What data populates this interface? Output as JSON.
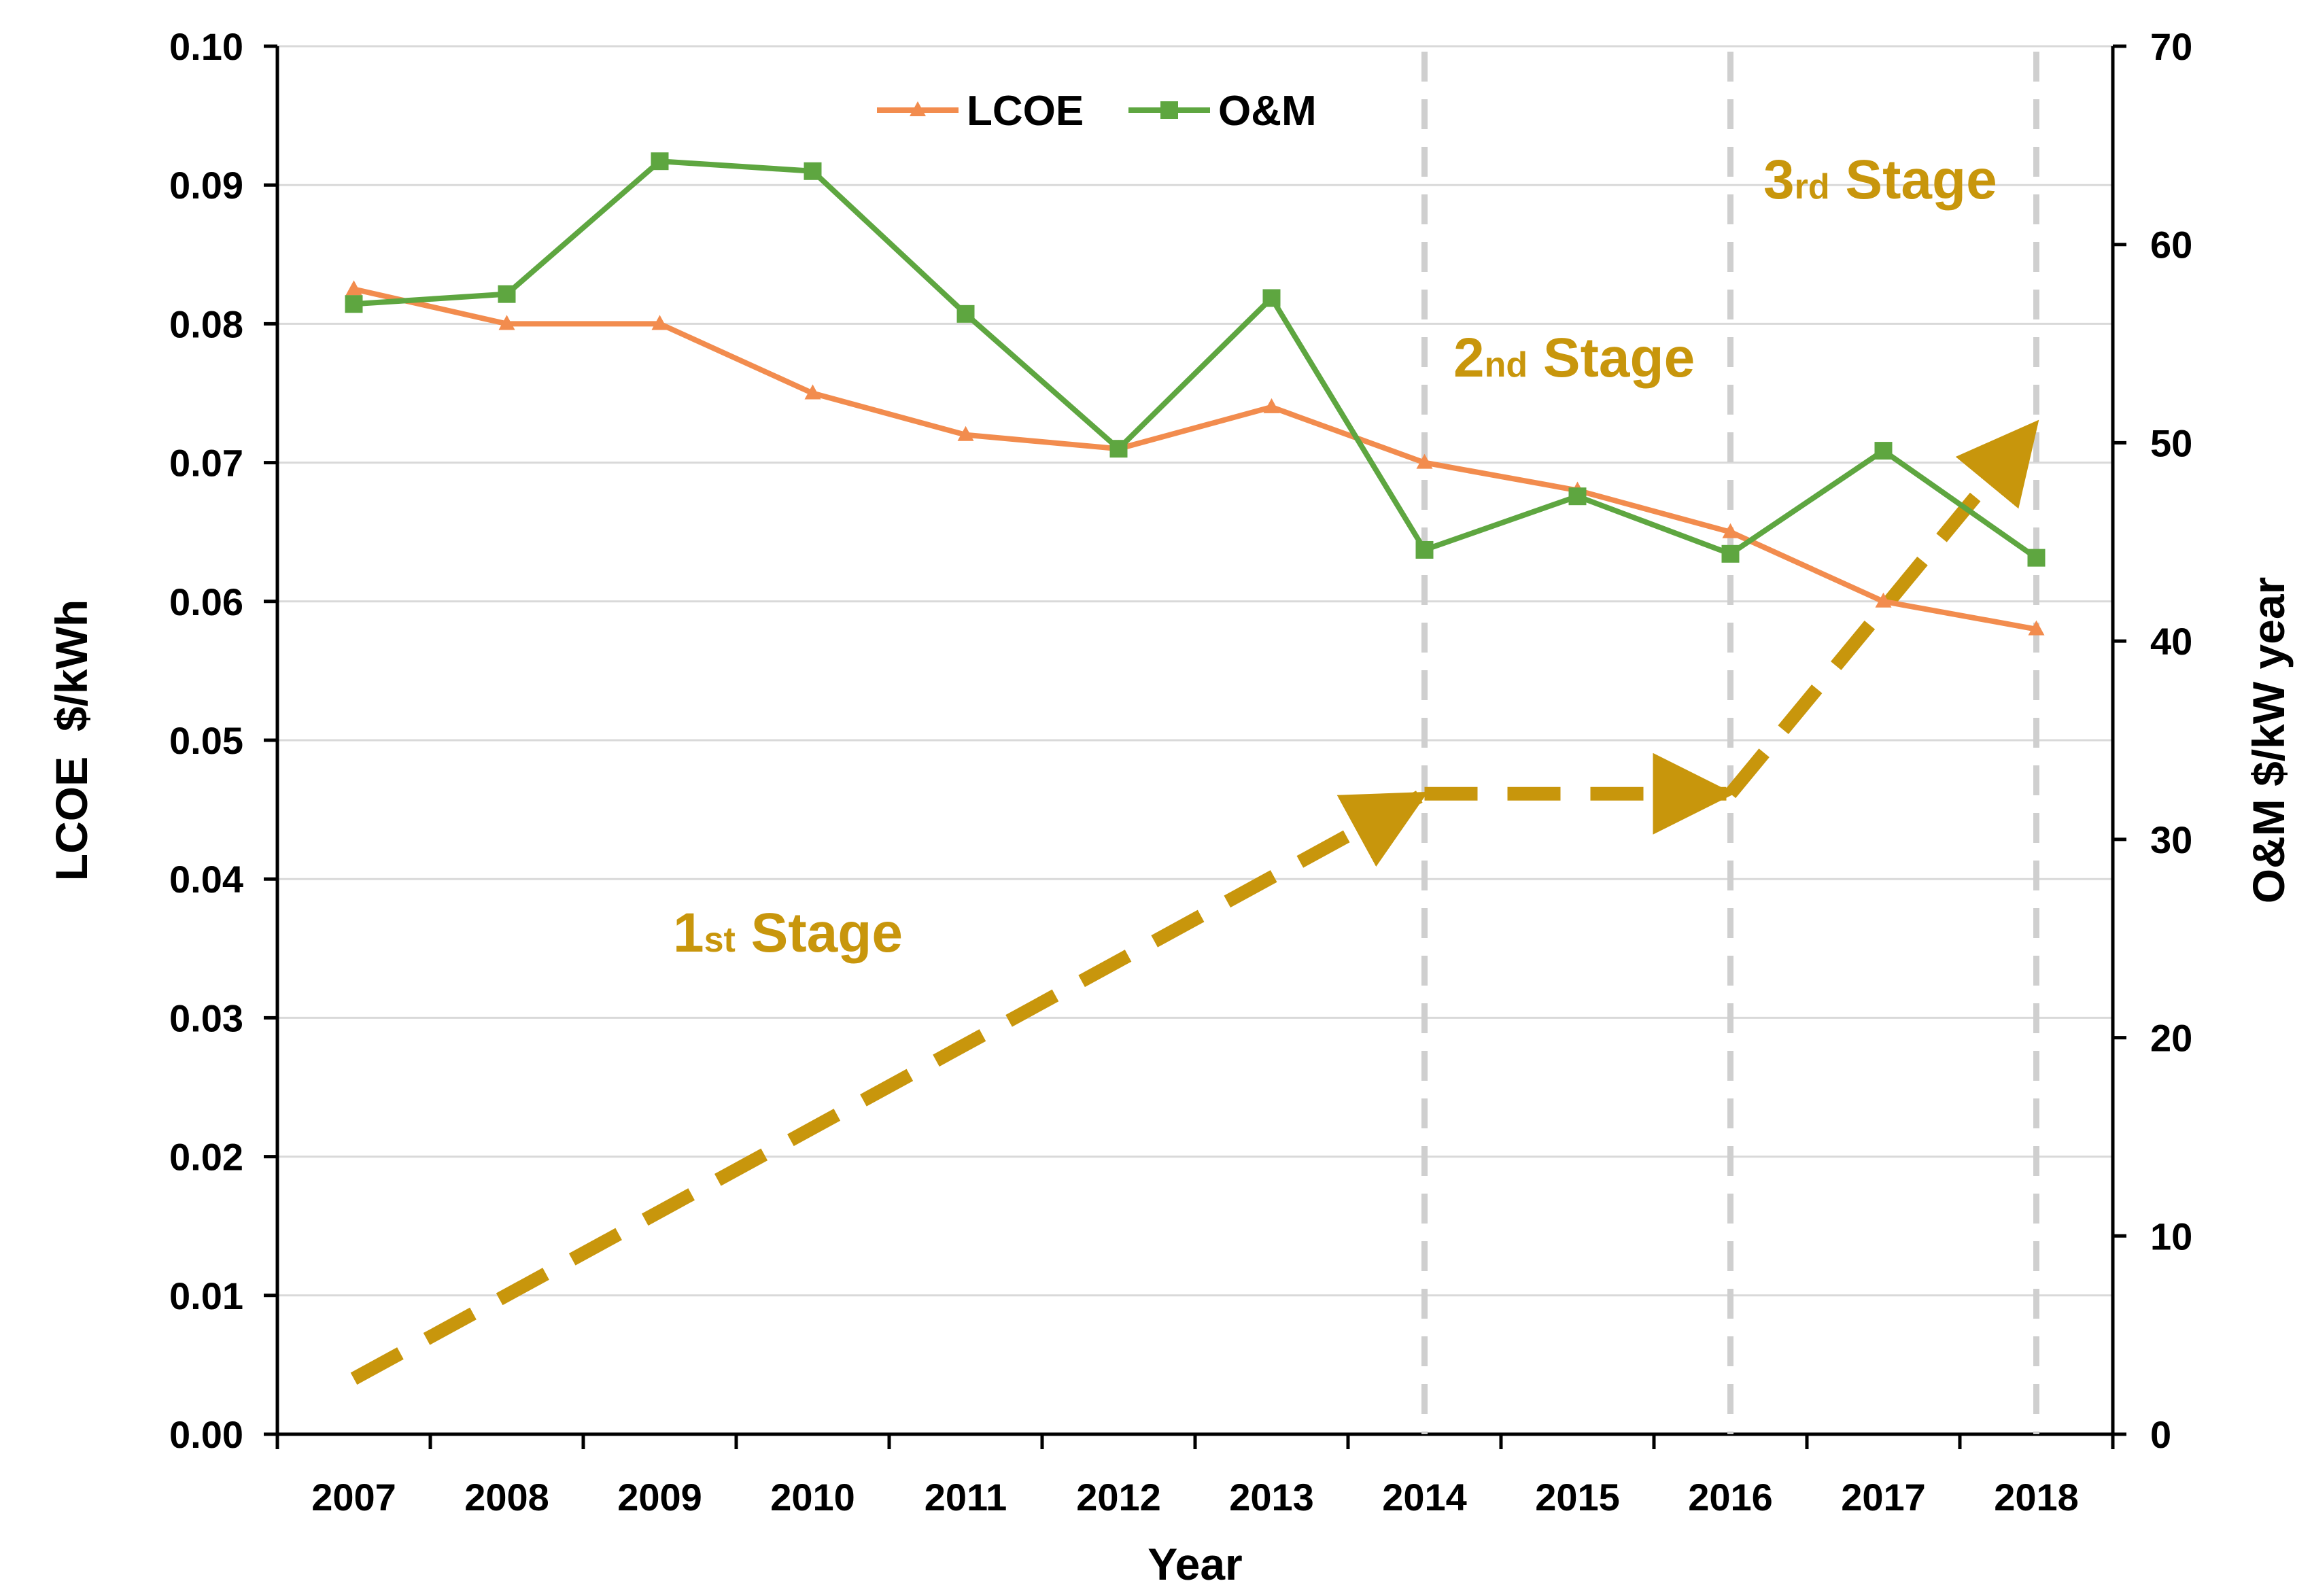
{
  "chart_data": {
    "type": "line",
    "title": "",
    "xlabel": "Year",
    "ylabel": "LCOE  $/kWh",
    "ylabel_right": "O&M $/kW year",
    "categories": [
      "2007",
      "2008",
      "2009",
      "2010",
      "2011",
      "2012",
      "2013",
      "2014",
      "2015",
      "2016",
      "2017",
      "2018"
    ],
    "ylim": [
      0,
      0.1
    ],
    "ylim_right": [
      0,
      70
    ],
    "yticks": [
      "0.00",
      "0.01",
      "0.02",
      "0.03",
      "0.04",
      "0.05",
      "0.06",
      "0.07",
      "0.08",
      "0.09",
      "0.10"
    ],
    "yticks_right": [
      "0",
      "10",
      "20",
      "30",
      "40",
      "50",
      "60",
      "70"
    ],
    "grid": true,
    "legend_position": "top-center",
    "series": [
      {
        "name": "LCOE",
        "axis": "left",
        "marker": "triangle",
        "color": "#F28C4E",
        "values": [
          0.0825,
          0.08,
          0.08,
          0.075,
          0.072,
          0.071,
          0.074,
          0.07,
          0.068,
          0.065,
          0.06,
          0.058
        ]
      },
      {
        "name": "O&M",
        "axis": "right",
        "marker": "square",
        "color": "#5EA640",
        "values": [
          57.0,
          57.5,
          64.2,
          63.7,
          56.5,
          49.7,
          57.3,
          44.6,
          47.3,
          44.4,
          49.6,
          44.2
        ]
      }
    ],
    "stage_boundaries": [
      "2014",
      "2016",
      "2018"
    ],
    "stage_arrows": [
      {
        "from": [
          "2007",
          2.8
        ],
        "to": [
          "2014",
          32.3
        ]
      },
      {
        "from": [
          "2014",
          32.3
        ],
        "to": [
          "2016",
          32.3
        ]
      },
      {
        "from": [
          "2016",
          32.3
        ],
        "to": [
          "2018",
          51.0
        ]
      }
    ],
    "annotations": [
      {
        "main": "1",
        "sub": "st",
        "rest": " Stage"
      },
      {
        "main": "2",
        "sub": "nd",
        "rest": " Stage"
      },
      {
        "main": "3",
        "sub": "rd",
        "rest": " Stage"
      }
    ],
    "colors": {
      "lcoe": "#F28C4E",
      "om": "#5EA640",
      "stage": "#C8960C",
      "grid": "#D9D9D9",
      "boundary": "#CFCFCF"
    }
  }
}
